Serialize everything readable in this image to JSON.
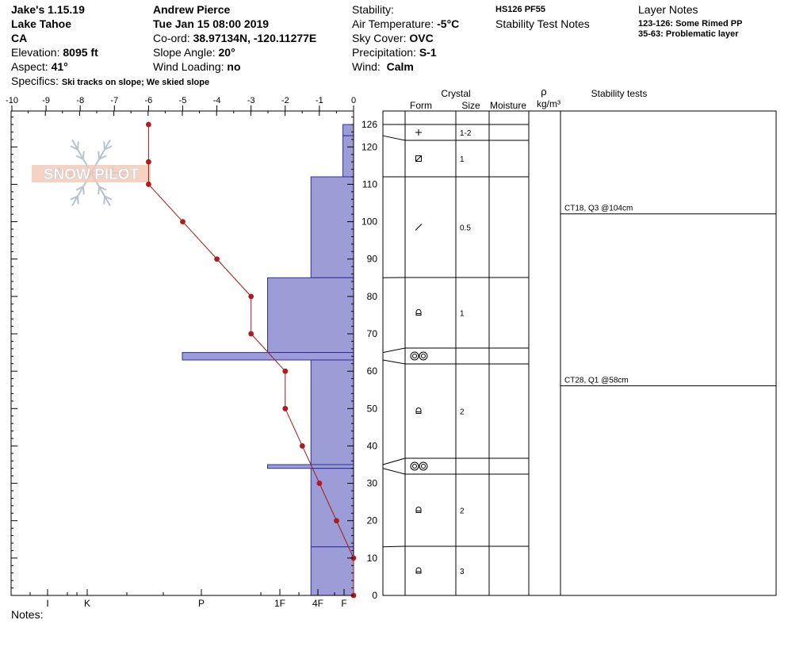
{
  "header": {
    "site_name": "Jake's 1.15.19",
    "area": "Lake Tahoe",
    "state": "CA",
    "elevation_label": "Elevation:",
    "elevation_value": "8095 ft",
    "aspect_label": "Aspect:",
    "aspect_value": "41°",
    "specifics_label": "Specifics:",
    "specifics_value": "Ski tracks on slope; We skied slope",
    "observer": "Andrew Pierce",
    "datetime": "Tue Jan 15 08:00 2019",
    "coord_label": "Co-ord:",
    "coord_value": "38.97134N, -120.11277E",
    "slope_label": "Slope Angle:",
    "slope_value": "20°",
    "wind_loading_label": "Wind Loading:",
    "wind_loading_value": "no",
    "stability_label": "Stability:",
    "air_temp_label": "Air Temperature:",
    "air_temp_value": "-5°C",
    "sky_label": "Sky Cover:",
    "sky_value": "OVC",
    "precip_label": "Precipitation:",
    "precip_value": "S-1",
    "wind_label": "Wind:",
    "wind_value": "Calm",
    "hs_pf": "HS126  PF55",
    "stability_test_notes": "Stability Test Notes",
    "layer_notes_title": "Layer Notes",
    "layer_note_1": "123-126: Some Rimed PP",
    "layer_note_2": "35-63: Problematic layer",
    "notes_label": "Notes:"
  },
  "watermark": "SNOW PILOT",
  "table_headers": {
    "crystal": "Crystal",
    "form": "Form",
    "size": "Size",
    "moisture": "Moisture",
    "rho": "ρ",
    "density_unit": "kg/m³",
    "stability_tests": "Stability tests"
  },
  "chart_data": {
    "type": "snow-profile",
    "temperature_axis": {
      "range": [
        -10,
        0
      ],
      "ticks": [
        "-10",
        "-9",
        "-8",
        "-7",
        "-6",
        "-5",
        "-4",
        "-3",
        "-2",
        "-1",
        "0"
      ]
    },
    "height_axis": {
      "range": [
        0,
        130
      ],
      "ticks": [
        0,
        10,
        20,
        30,
        40,
        50,
        60,
        70,
        80,
        90,
        100,
        110,
        120,
        126
      ],
      "unit": "cm"
    },
    "hardness_axis": {
      "ticks": [
        "I",
        "K",
        "P",
        "1F",
        "4F",
        "F"
      ]
    },
    "temperature_profile": [
      {
        "height": 126,
        "temp": -6
      },
      {
        "height": 116,
        "temp": -6
      },
      {
        "height": 110,
        "temp": -6
      },
      {
        "height": 100,
        "temp": -5
      },
      {
        "height": 90,
        "temp": -4
      },
      {
        "height": 80,
        "temp": -3
      },
      {
        "height": 70,
        "temp": -3
      },
      {
        "height": 60,
        "temp": -2
      },
      {
        "height": 50,
        "temp": -2
      },
      {
        "height": 40,
        "temp": -1.5
      },
      {
        "height": 30,
        "temp": -1
      },
      {
        "height": 20,
        "temp": -0.5
      },
      {
        "height": 10,
        "temp": 0
      },
      {
        "height": 0,
        "temp": 0
      }
    ],
    "hardness_layers": [
      {
        "top": 126,
        "bottom": 123,
        "hardness_offset": 0.28
      },
      {
        "top": 123,
        "bottom": 112,
        "hardness_offset": 0.28
      },
      {
        "top": 112,
        "bottom": 85,
        "hardness_offset": 1.12
      },
      {
        "top": 85,
        "bottom": 65,
        "hardness_offset": 2.26
      },
      {
        "top": 65,
        "bottom": 63,
        "hardness_offset": 4.5
      },
      {
        "top": 63,
        "bottom": 35,
        "hardness_offset": 1.12
      },
      {
        "top": 35,
        "bottom": 34,
        "hardness_offset": 2.26
      },
      {
        "top": 34,
        "bottom": 13,
        "hardness_offset": 1.12
      },
      {
        "top": 13,
        "bottom": 0,
        "hardness_offset": 1.12
      }
    ],
    "layers": [
      {
        "top": 126,
        "bottom": 123,
        "form": "plus",
        "size": "1-2"
      },
      {
        "top": 123,
        "bottom": 112,
        "form": "box",
        "size": "1"
      },
      {
        "top": 112,
        "bottom": 85,
        "form": "slash",
        "size": "0.5"
      },
      {
        "top": 85,
        "bottom": 65,
        "form": "facet",
        "size": "1"
      },
      {
        "top": 65,
        "bottom": 63,
        "form": "rounds",
        "size": ""
      },
      {
        "top": 63,
        "bottom": 35,
        "form": "facet",
        "size": "2"
      },
      {
        "top": 35,
        "bottom": 34,
        "form": "rounds",
        "size": ""
      },
      {
        "top": 34,
        "bottom": 13,
        "form": "facet",
        "size": "2"
      },
      {
        "top": 13,
        "bottom": 0,
        "form": "facet",
        "size": "3"
      }
    ],
    "stability_tests": [
      {
        "height": 104,
        "label": "CT18, Q3 @104cm"
      },
      {
        "height": 58,
        "label": "CT28, Q1 @58cm"
      }
    ]
  }
}
